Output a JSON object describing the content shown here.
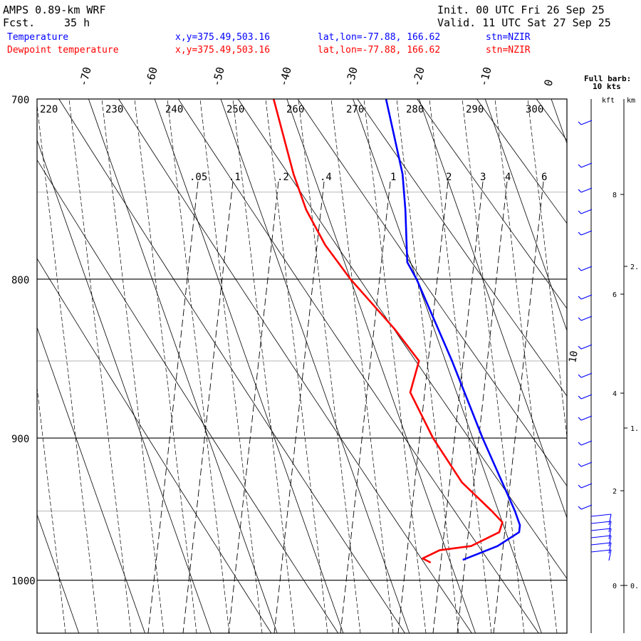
{
  "header": {
    "model": "AMPS 0.89-km WRF",
    "fcst_label": "Fcst.",
    "fcst_value": "35 h",
    "init": "Init. 00 UTC Fri 26 Sep 25",
    "valid": "Valid. 11 UTC Sat 27 Sep 25",
    "rows": [
      {
        "name": "Temperature",
        "xy": "x,y=375.49,503.16",
        "latlon": "lat,lon=-77.88, 166.62",
        "stn": "stn=NZIR",
        "color": "#0000ff"
      },
      {
        "name": "Dewpoint temperature",
        "xy": "x,y=375.49,503.16",
        "latlon": "lat,lon=-77.88, 166.62",
        "stn": "stn=NZIR",
        "color": "#ff0000"
      }
    ]
  },
  "chart_data": {
    "type": "line",
    "diagram": "skew-T log-p",
    "y_scale": "log",
    "ylim": [
      1040,
      700
    ],
    "pressure_ticks": [
      700,
      800,
      900,
      1000
    ],
    "temperature_ticks": [
      "-70",
      "-60",
      "-50",
      "-40",
      "-30",
      "-20",
      "-10",
      "0"
    ],
    "theta_labels": [
      "220",
      "230",
      "240",
      "250",
      "260",
      "270",
      "280",
      "290",
      "300"
    ],
    "mixing_ratio_labels": [
      ".05",
      ".1",
      ".2",
      ".4",
      "1",
      "2",
      "3",
      "4",
      "6"
    ],
    "barb_legend": {
      "title": "Full barb:",
      "value": "10 kts"
    },
    "height_axis": {
      "kft_label": "kft",
      "km_label": "km",
      "kft_ticks": [
        "8",
        "6",
        "4",
        "2",
        "0"
      ],
      "km_ticks": [
        "2.",
        "1.",
        "0."
      ]
    },
    "wind_annotation": "10",
    "series": [
      {
        "name": "Temperature",
        "color": "#0000ff",
        "pressure": [
          985,
          975,
          965,
          960,
          950,
          900,
          850,
          800,
          790,
          760,
          740,
          700
        ],
        "values": [
          -38,
          -32,
          -28,
          -27.5,
          -27.5,
          -28.5,
          -29,
          -30,
          -30.5,
          -28,
          -26.5,
          -25
        ]
      },
      {
        "name": "Dewpoint temperature",
        "color": "#ff0000",
        "pressure": [
          987,
          984,
          978,
          975,
          965,
          958,
          950,
          930,
          900,
          870,
          850,
          830,
          800,
          780,
          760,
          740,
          700
        ],
        "values": [
          -43,
          -44,
          -41,
          -36,
          -31,
          -30,
          -31,
          -34,
          -36,
          -37,
          -34,
          -36,
          -40,
          -42,
          -43,
          -43,
          -42
        ]
      }
    ]
  }
}
